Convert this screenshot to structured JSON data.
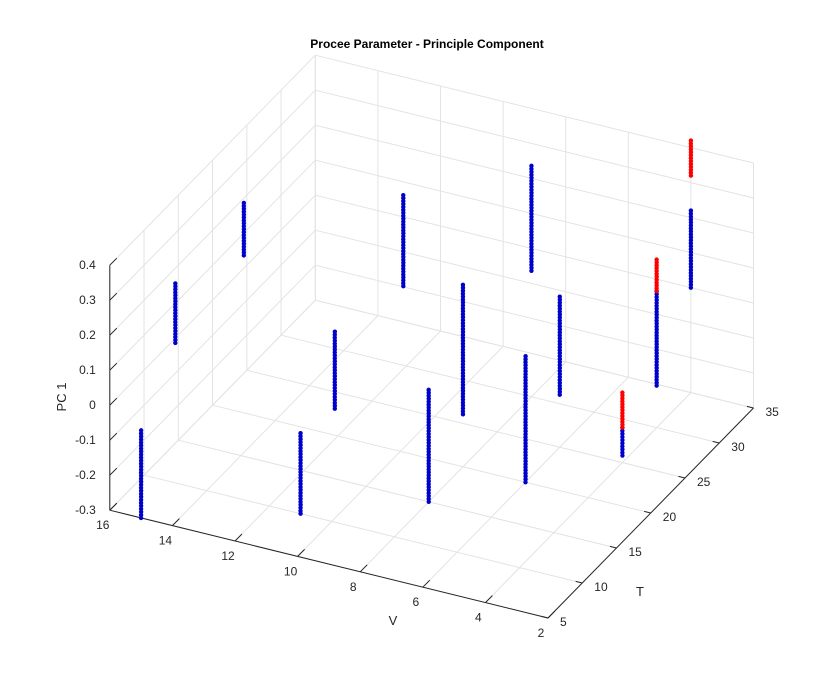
{
  "chart_data": {
    "type": "scatter",
    "title": "Procee Parameter - Principle Component",
    "xlabel": "T",
    "ylabel": "V",
    "zlabel": "PC 1",
    "xlim": [
      5,
      35
    ],
    "ylim": [
      2,
      16
    ],
    "zlim": [
      -0.3,
      0.4
    ],
    "xticks": [
      "5",
      "10",
      "15",
      "20",
      "25",
      "30",
      "35"
    ],
    "yticks": [
      "2",
      "4",
      "6",
      "8",
      "10",
      "12",
      "14",
      "16"
    ],
    "zticks": [
      "-0.3",
      "-0.2",
      "-0.1",
      "0",
      "0.1",
      "0.2",
      "0.3",
      "0.4"
    ],
    "grid": true,
    "colors": {
      "normal": "#0000CC",
      "highlight": "#FF0000"
    },
    "clusters": [
      {
        "T": 5,
        "V": 15,
        "z_min": -0.3,
        "z_max": -0.05,
        "color": "normal"
      },
      {
        "T": 10,
        "V": 11,
        "z_min": -0.3,
        "z_max": -0.07,
        "color": "normal"
      },
      {
        "T": 10,
        "V": 15,
        "z_min": 0.1,
        "z_max": 0.27,
        "color": "normal"
      },
      {
        "T": 15,
        "V": 8,
        "z_min": -0.3,
        "z_max": 0.02,
        "color": "normal"
      },
      {
        "T": 15,
        "V": 11,
        "z_min": -0.1,
        "z_max": 0.12,
        "color": "normal"
      },
      {
        "T": 20,
        "V": 6,
        "z_min": -0.3,
        "z_max": 0.06,
        "color": "normal"
      },
      {
        "T": 20,
        "V": 8,
        "z_min": -0.15,
        "z_max": 0.22,
        "color": "normal"
      },
      {
        "T": 20,
        "V": 15,
        "z_min": 0.15,
        "z_max": 0.3,
        "color": "normal"
      },
      {
        "T": 25,
        "V": 4,
        "z_min": -0.28,
        "z_max": -0.2,
        "color": "normal"
      },
      {
        "T": 25,
        "V": 4,
        "z_min": -0.2,
        "z_max": -0.1,
        "color": "highlight"
      },
      {
        "T": 25,
        "V": 6,
        "z_min": -0.15,
        "z_max": 0.13,
        "color": "normal"
      },
      {
        "T": 25,
        "V": 11,
        "z_min": 0.05,
        "z_max": 0.31,
        "color": "normal"
      },
      {
        "T": 30,
        "V": 4,
        "z_min": -0.18,
        "z_max": 0.09,
        "color": "normal"
      },
      {
        "T": 30,
        "V": 4,
        "z_min": 0.09,
        "z_max": 0.18,
        "color": "highlight"
      },
      {
        "T": 30,
        "V": 8,
        "z_min": 0.06,
        "z_max": 0.36,
        "color": "normal"
      },
      {
        "T": 35,
        "V": 4,
        "z_min": 0.0,
        "z_max": 0.22,
        "color": "normal"
      },
      {
        "T": 35,
        "V": 4,
        "z_min": 0.32,
        "z_max": 0.42,
        "color": "highlight"
      }
    ]
  }
}
